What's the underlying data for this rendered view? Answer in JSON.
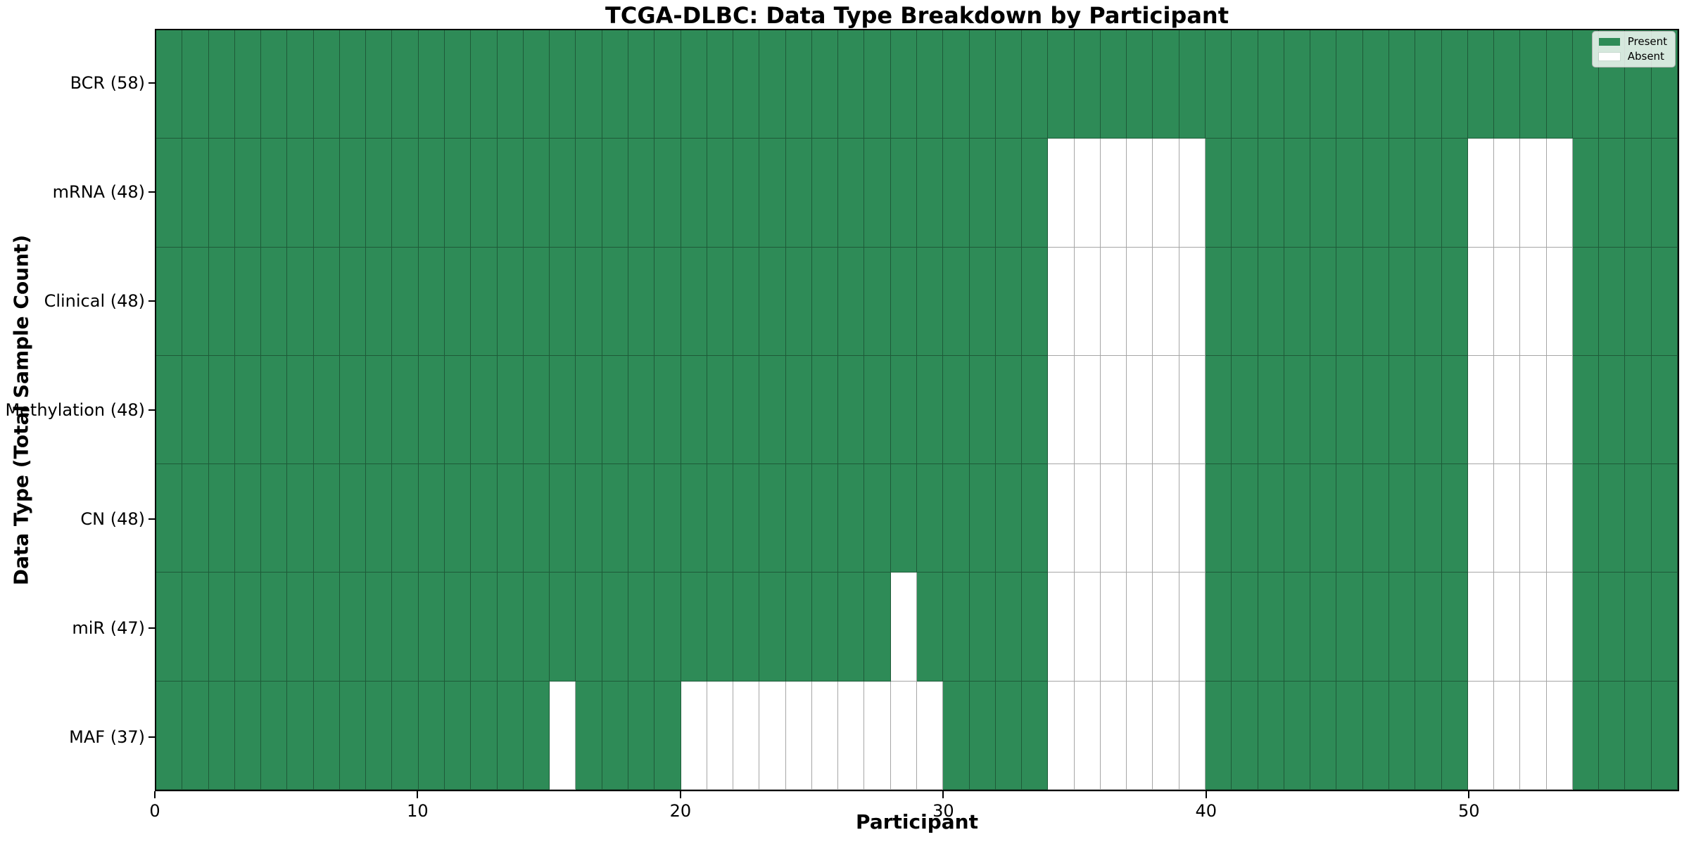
{
  "title": "TCGA-DLBC: Data Type Breakdown by Participant",
  "chart_data": {
    "type": "heatmap",
    "title": "TCGA-DLBC: Data Type Breakdown by Participant",
    "xlabel": "Participant",
    "ylabel": "Data Type (Total Sample Count)",
    "n_participants": 58,
    "x_ticks": [
      0,
      10,
      20,
      30,
      40,
      50
    ],
    "x_range": [
      0,
      58
    ],
    "grid": true,
    "legend_position": "upper right",
    "legend": [
      {
        "label": "Present",
        "color": "#2E8B57"
      },
      {
        "label": "Absent",
        "color": "#FFFFFF"
      }
    ],
    "colors": {
      "present": "#2E8B57",
      "absent": "#FFFFFF",
      "cell_edge": "rgba(0,0,0,0.35)"
    },
    "rows": [
      {
        "label": "BCR (58)",
        "data_type": "BCR",
        "present_count": 58,
        "absent_participants": []
      },
      {
        "label": "mRNA (48)",
        "data_type": "mRNA",
        "present_count": 48,
        "absent_participants": [
          34,
          35,
          36,
          37,
          38,
          39,
          50,
          51,
          52,
          53
        ]
      },
      {
        "label": "Clinical (48)",
        "data_type": "Clinical",
        "present_count": 48,
        "absent_participants": [
          34,
          35,
          36,
          37,
          38,
          39,
          50,
          51,
          52,
          53
        ]
      },
      {
        "label": "Methylation (48)",
        "data_type": "Methylation",
        "present_count": 48,
        "absent_participants": [
          34,
          35,
          36,
          37,
          38,
          39,
          50,
          51,
          52,
          53
        ]
      },
      {
        "label": "CN (48)",
        "data_type": "CN",
        "present_count": 48,
        "absent_participants": [
          34,
          35,
          36,
          37,
          38,
          39,
          50,
          51,
          52,
          53
        ]
      },
      {
        "label": "miR (47)",
        "data_type": "miR",
        "present_count": 47,
        "absent_participants": [
          28,
          34,
          35,
          36,
          37,
          38,
          39,
          50,
          51,
          52,
          53
        ]
      },
      {
        "label": "MAF (37)",
        "data_type": "MAF",
        "present_count": 37,
        "absent_participants": [
          15,
          20,
          21,
          22,
          23,
          24,
          25,
          26,
          27,
          28,
          29,
          34,
          35,
          36,
          37,
          38,
          39,
          50,
          51,
          52,
          53
        ]
      }
    ]
  }
}
